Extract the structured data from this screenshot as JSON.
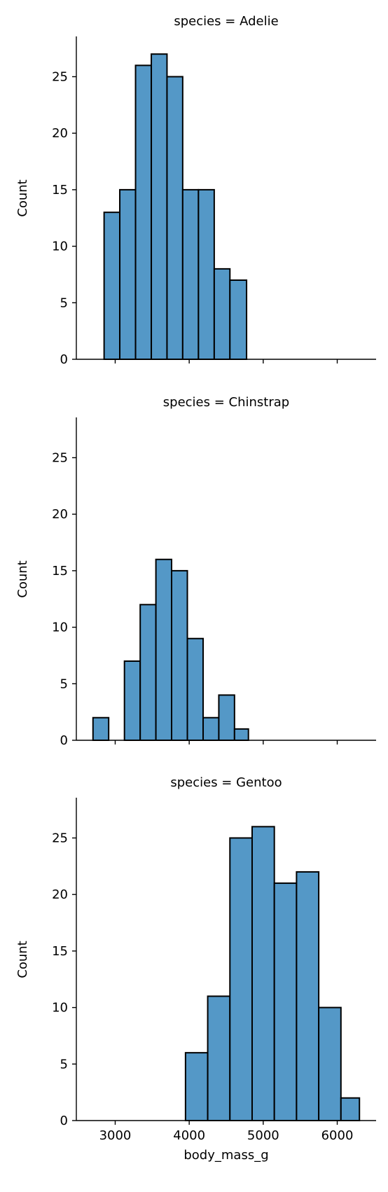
{
  "chart_data": {
    "type": "bar",
    "xlabel": "body_mass_g",
    "ylabel": "Count",
    "xlim": [
      2475,
      6525
    ],
    "ylim": [
      0,
      28.5
    ],
    "x_ticks": [
      3000,
      4000,
      5000,
      6000
    ],
    "y_ticks": [
      0,
      5,
      10,
      15,
      20,
      25
    ],
    "color": "#5498c7",
    "edge_color": "#000000",
    "panels": [
      {
        "title": "species = Adelie",
        "bins": [
          {
            "x0": 2850,
            "x1": 3062,
            "count": 13
          },
          {
            "x0": 3062,
            "x1": 3275,
            "count": 15
          },
          {
            "x0": 3275,
            "x1": 3488,
            "count": 26
          },
          {
            "x0": 3488,
            "x1": 3700,
            "count": 27
          },
          {
            "x0": 3700,
            "x1": 3912,
            "count": 25
          },
          {
            "x0": 3912,
            "x1": 4125,
            "count": 15
          },
          {
            "x0": 4125,
            "x1": 4338,
            "count": 15
          },
          {
            "x0": 4338,
            "x1": 4550,
            "count": 8
          },
          {
            "x0": 4550,
            "x1": 4775,
            "count": 7
          }
        ]
      },
      {
        "title": "species = Chinstrap",
        "bins": [
          {
            "x0": 2700,
            "x1": 2912,
            "count": 2
          },
          {
            "x0": 2912,
            "x1": 3125,
            "count": 0
          },
          {
            "x0": 3125,
            "x1": 3338,
            "count": 7
          },
          {
            "x0": 3338,
            "x1": 3550,
            "count": 12
          },
          {
            "x0": 3550,
            "x1": 3762,
            "count": 16
          },
          {
            "x0": 3762,
            "x1": 3975,
            "count": 15
          },
          {
            "x0": 3975,
            "x1": 4188,
            "count": 9
          },
          {
            "x0": 4188,
            "x1": 4400,
            "count": 2
          },
          {
            "x0": 4400,
            "x1": 4612,
            "count": 4
          },
          {
            "x0": 4612,
            "x1": 4800,
            "count": 1
          }
        ]
      },
      {
        "title": "species = Gentoo",
        "bins": [
          {
            "x0": 3950,
            "x1": 4250,
            "count": 6
          },
          {
            "x0": 4250,
            "x1": 4550,
            "count": 11
          },
          {
            "x0": 4550,
            "x1": 4850,
            "count": 25
          },
          {
            "x0": 4850,
            "x1": 5150,
            "count": 26
          },
          {
            "x0": 5150,
            "x1": 5450,
            "count": 21
          },
          {
            "x0": 5450,
            "x1": 5750,
            "count": 22
          },
          {
            "x0": 5750,
            "x1": 6050,
            "count": 10
          },
          {
            "x0": 6050,
            "x1": 6300,
            "count": 2
          }
        ]
      }
    ]
  }
}
